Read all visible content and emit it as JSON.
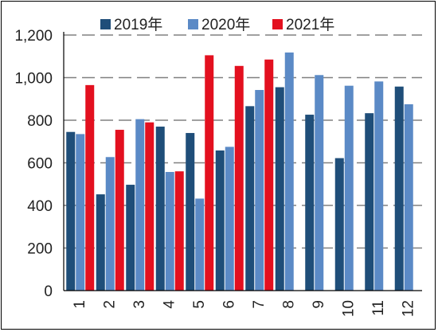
{
  "chart_data": {
    "type": "bar",
    "categories": [
      "1",
      "2",
      "3",
      "4",
      "5",
      "6",
      "7",
      "8",
      "9",
      "10",
      "11",
      "12"
    ],
    "series": [
      {
        "name": "2019年",
        "color": "#1F4E79",
        "values": [
          745,
          452,
          497,
          770,
          740,
          658,
          866,
          955,
          826,
          622,
          833,
          958
        ]
      },
      {
        "name": "2020年",
        "color": "#5B8AC6",
        "values": [
          735,
          627,
          805,
          557,
          432,
          675,
          942,
          1118,
          1012,
          962,
          982,
          875
        ]
      },
      {
        "name": "2021年",
        "color": "#E3101F",
        "values": [
          965,
          755,
          790,
          560,
          1105,
          1055,
          1085,
          null,
          null,
          null,
          null,
          null
        ]
      }
    ],
    "ylim": [
      0,
      1200
    ],
    "yticks": [
      0,
      200,
      400,
      600,
      800,
      1000,
      1200
    ],
    "ytick_labels": [
      "0",
      "200",
      "400",
      "600",
      "800",
      "1,000",
      "1,200"
    ],
    "grid": "horizontal dashed",
    "legend": "top"
  }
}
